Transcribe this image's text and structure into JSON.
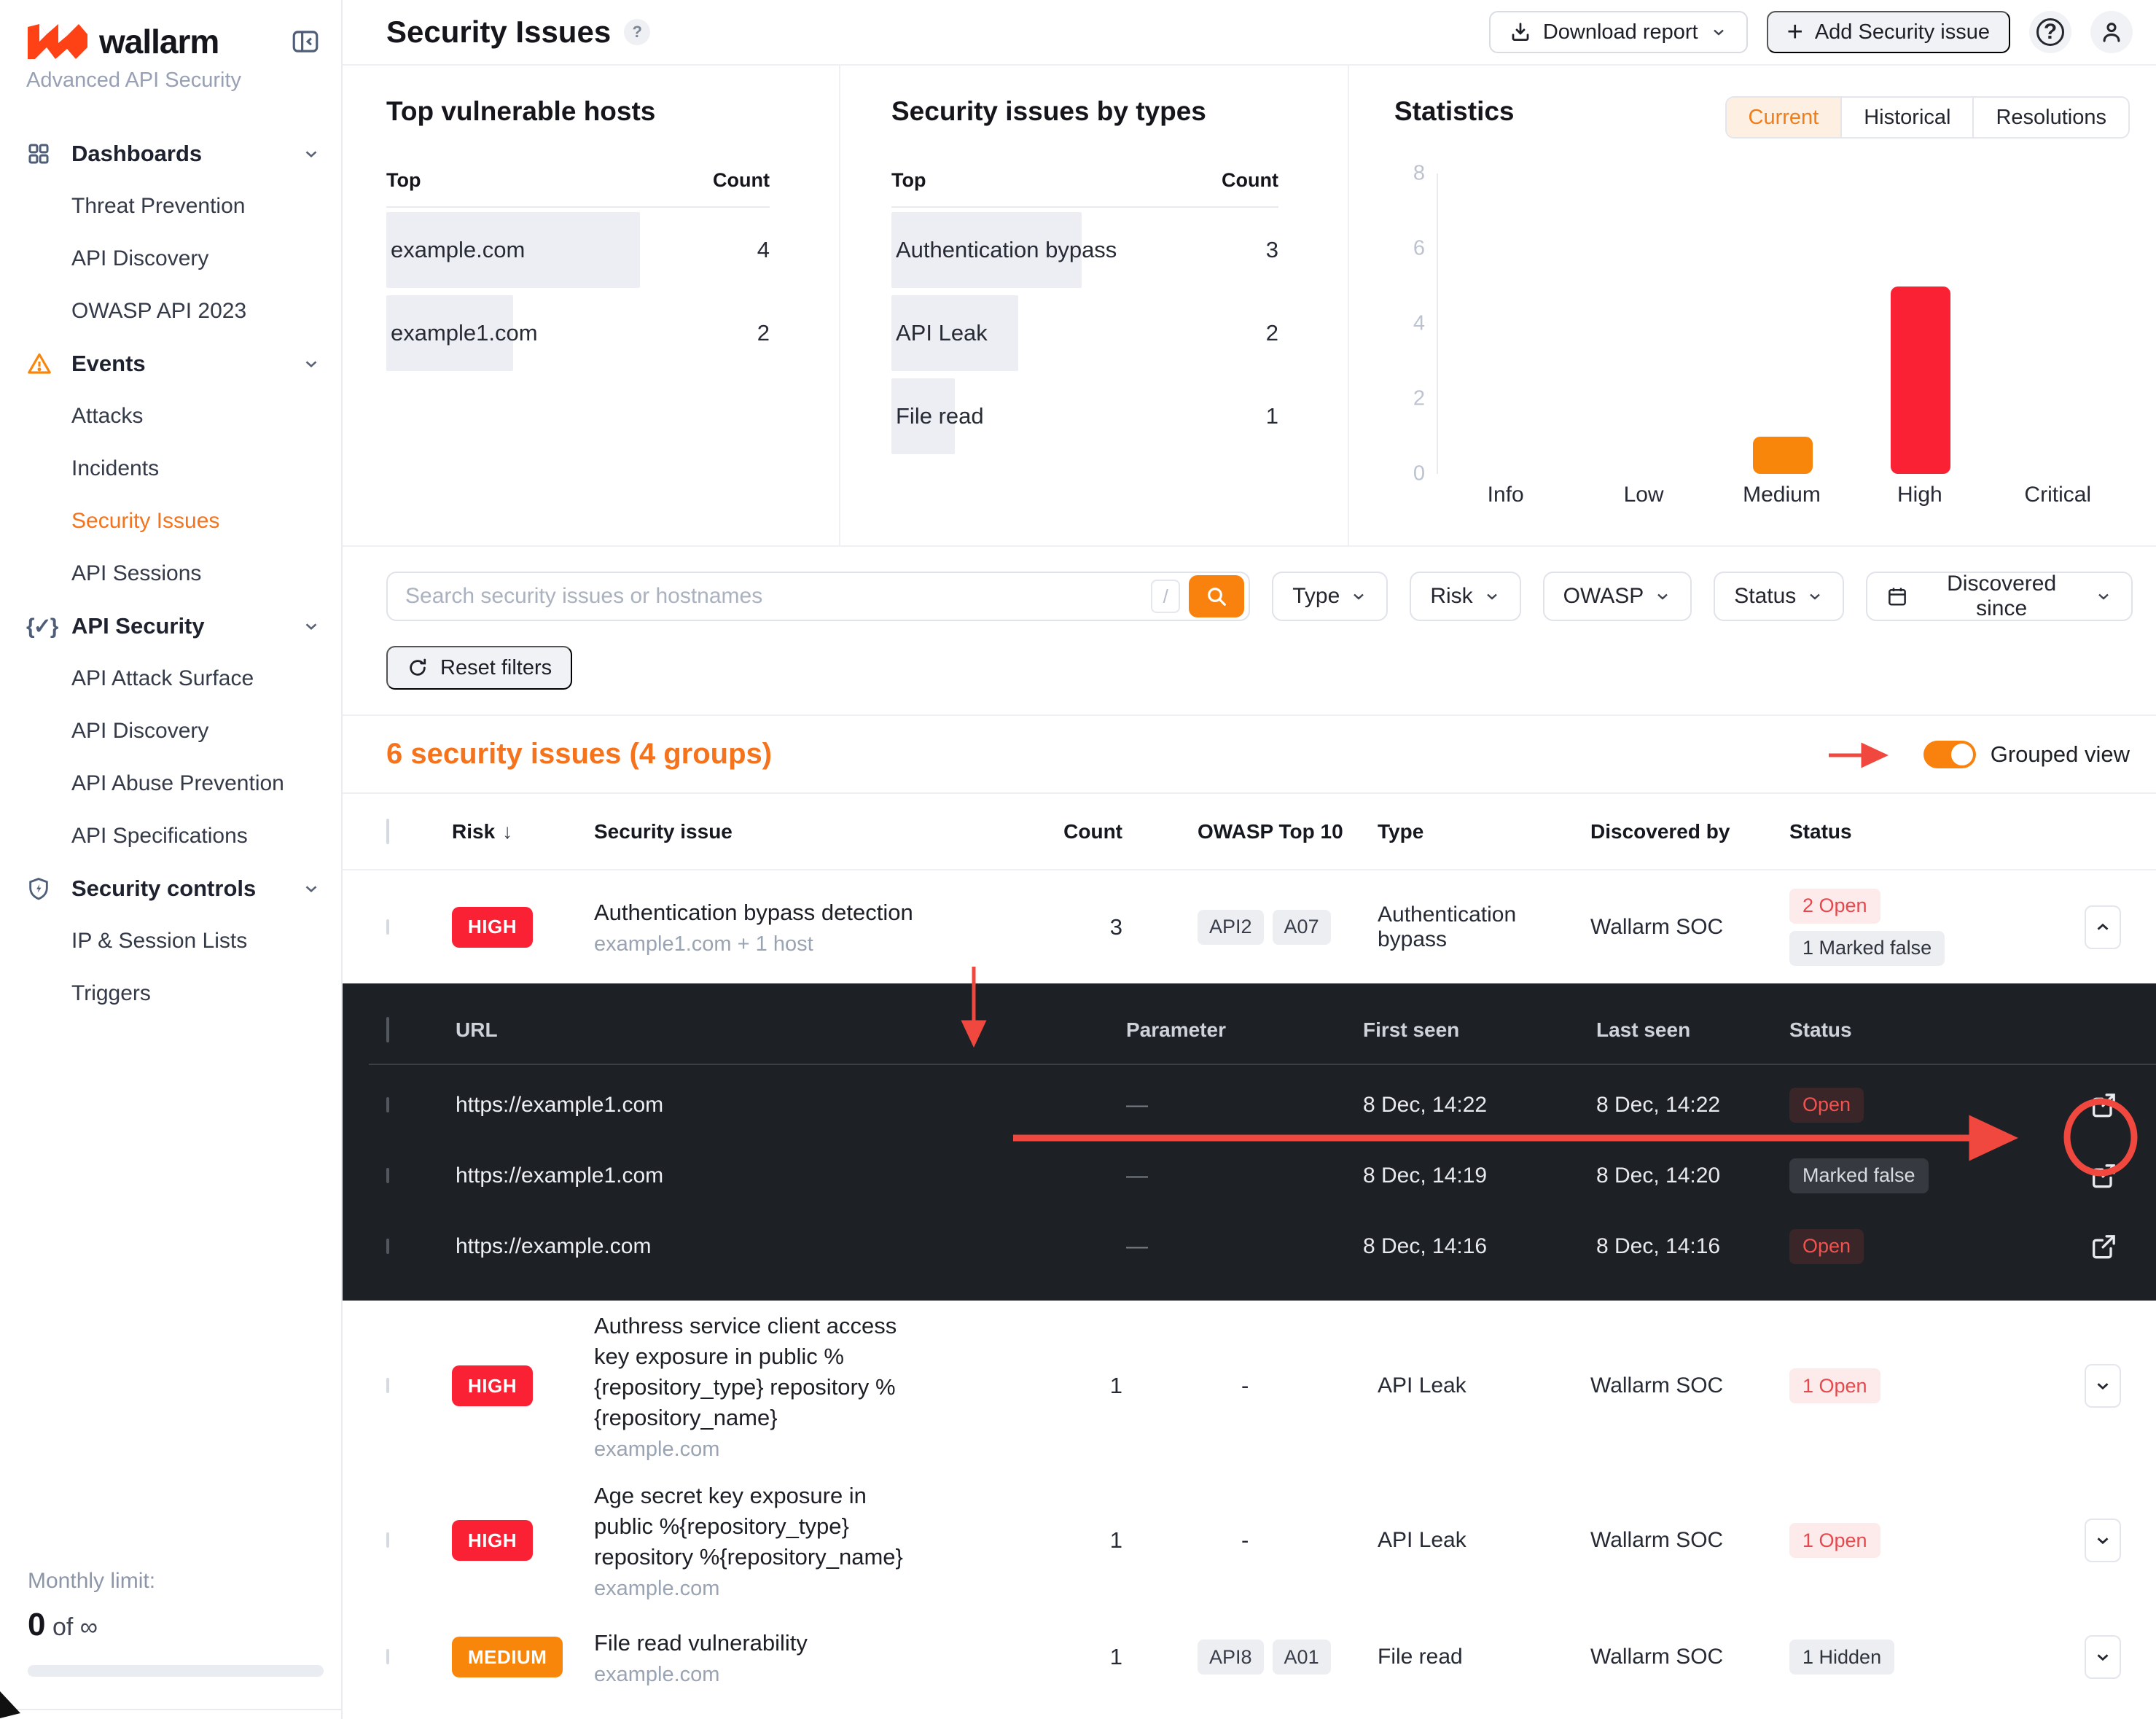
{
  "colors": {
    "accent": "#f4731c",
    "annotation_red": "#f0483e",
    "high_red": "#fa2134",
    "medium_orange": "#f8860b"
  },
  "sidebar": {
    "logo_text": "wallarm",
    "subtitle": "Advanced API Security",
    "sections": [
      {
        "label": "Dashboards",
        "items": [
          {
            "label": "Threat Prevention"
          },
          {
            "label": "API Discovery"
          },
          {
            "label": "OWASP API 2023"
          }
        ]
      },
      {
        "label": "Events",
        "items": [
          {
            "label": "Attacks"
          },
          {
            "label": "Incidents"
          },
          {
            "label": "Security Issues"
          },
          {
            "label": "API Sessions"
          }
        ]
      },
      {
        "label": "API Security",
        "items": [
          {
            "label": "API Attack Surface"
          },
          {
            "label": "API Discovery"
          },
          {
            "label": "API Abuse Prevention"
          },
          {
            "label": "API Specifications"
          }
        ]
      },
      {
        "label": "Security controls",
        "items": [
          {
            "label": "IP & Session Lists"
          },
          {
            "label": "Triggers"
          }
        ]
      }
    ],
    "active_item": "Security Issues",
    "monthly_limit": {
      "label": "Monthly limit:",
      "used": "0",
      "separator": "of",
      "total": "∞"
    }
  },
  "header": {
    "title": "Security Issues",
    "download_label": "Download report",
    "add_label": "Add Security issue"
  },
  "panels": {
    "hosts": {
      "title": "Top vulnerable hosts",
      "col_top": "Top",
      "col_count": "Count",
      "rows": [
        {
          "label": "example.com",
          "count": 4
        },
        {
          "label": "example1.com",
          "count": 2
        }
      ]
    },
    "types": {
      "title": "Security issues by types",
      "col_top": "Top",
      "col_count": "Count",
      "rows": [
        {
          "label": "Authentication bypass",
          "count": 3
        },
        {
          "label": "API Leak",
          "count": 2
        },
        {
          "label": "File read",
          "count": 1
        }
      ]
    },
    "stats": {
      "title": "Statistics",
      "active_tab": "Current",
      "tabs": [
        {
          "label": "Current"
        },
        {
          "label": "Historical"
        },
        {
          "label": "Resolutions"
        }
      ]
    }
  },
  "chart_data": {
    "type": "bar",
    "title": "Statistics (Current)",
    "categories": [
      "Info",
      "Low",
      "Medium",
      "High",
      "Critical"
    ],
    "values": [
      0,
      0,
      1,
      5,
      0
    ],
    "colors": [
      "#b0b7c3",
      "#b0b7c3",
      "#f8860b",
      "#fa2134",
      "#b0b7c3"
    ],
    "xlabel": "",
    "ylabel": "",
    "ylim": [
      0,
      8
    ],
    "yticks": [
      0,
      2,
      4,
      6,
      8
    ],
    "grid": false,
    "legend": false
  },
  "filters": {
    "search_placeholder": "Search security issues or hostnames",
    "shortcut_key": "/",
    "type": "Type",
    "risk": "Risk",
    "owasp": "OWASP",
    "status": "Status",
    "discovered": "Discovered since",
    "reset": "Reset filters"
  },
  "results": {
    "summary": "6 security issues (4 groups)",
    "grouped_label": "Grouped view"
  },
  "table": {
    "headers": {
      "risk": "Risk",
      "issue": "Security issue",
      "count": "Count",
      "owasp": "OWASP Top 10",
      "type": "Type",
      "discovered": "Discovered by",
      "status": "Status"
    },
    "rows": [
      {
        "risk": "HIGH",
        "title": "Authentication bypass detection",
        "subtitle": "example1.com + 1 host",
        "count": "3",
        "owasp": [
          "API2",
          "A07"
        ],
        "type": "Authentication bypass",
        "discovered": "Wallarm SOC",
        "status_open": "2 Open",
        "status_muted": "1 Marked false"
      },
      {
        "risk": "HIGH",
        "title": "Authress service client access key exposure in public %{repository_type} repository %{repository_name}",
        "subtitle": "example.com",
        "count": "1",
        "owasp_dash": "-",
        "type": "API Leak",
        "discovered": "Wallarm SOC",
        "status_open": "1 Open"
      },
      {
        "risk": "HIGH",
        "title": "Age secret key exposure in public %{repository_type} repository %{repository_name}",
        "subtitle": "example.com",
        "count": "1",
        "owasp_dash": "-",
        "type": "API Leak",
        "discovered": "Wallarm SOC",
        "status_open": "1 Open"
      },
      {
        "risk": "MEDIUM",
        "title": "File read vulnerability",
        "subtitle": "example.com",
        "count": "1",
        "owasp": [
          "API8",
          "A01"
        ],
        "type": "File read",
        "discovered": "Wallarm SOC",
        "status_hidden": "1 Hidden"
      }
    ],
    "subtable": {
      "headers": {
        "url": "URL",
        "parameter": "Parameter",
        "first_seen": "First seen",
        "last_seen": "Last seen",
        "status": "Status"
      },
      "rows": [
        {
          "url": "https://example1.com",
          "parameter": "—",
          "first_seen": "8 Dec, 14:22",
          "last_seen": "8 Dec, 14:22",
          "status": "Open"
        },
        {
          "url": "https://example1.com",
          "parameter": "—",
          "first_seen": "8 Dec, 14:19",
          "last_seen": "8 Dec, 14:20",
          "status": "Marked false"
        },
        {
          "url": "https://example.com",
          "parameter": "—",
          "first_seen": "8 Dec, 14:16",
          "last_seen": "8 Dec, 14:16",
          "status": "Open"
        }
      ]
    }
  }
}
